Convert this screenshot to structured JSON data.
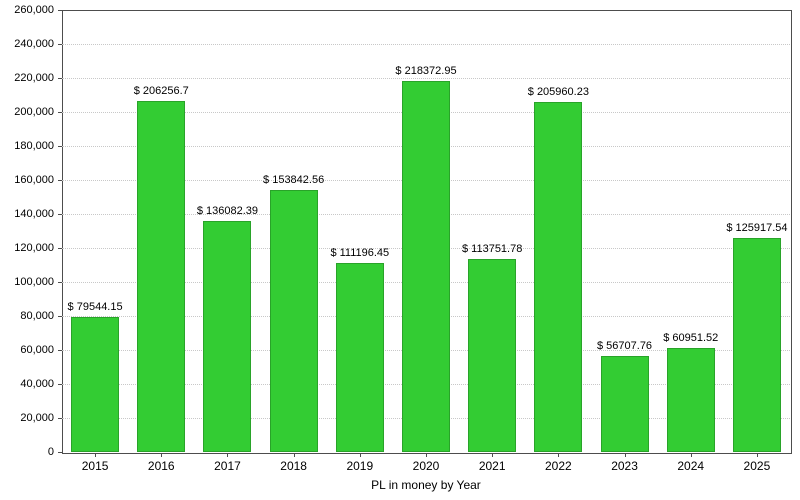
{
  "chart_data": {
    "type": "bar",
    "title": "",
    "xlabel": "PL in money by Year",
    "ylabel": "",
    "categories": [
      "2015",
      "2016",
      "2017",
      "2018",
      "2019",
      "2020",
      "2021",
      "2022",
      "2023",
      "2024",
      "2025"
    ],
    "values": [
      79544.15,
      206256.7,
      136082.39,
      153842.56,
      111196.45,
      218372.95,
      113751.78,
      205960.23,
      56707.76,
      60951.52,
      125917.54
    ],
    "bar_labels": [
      "$ 79544.15",
      "$ 206256.7",
      "$ 136082.39",
      "$ 153842.56",
      "$ 111196.45",
      "$ 218372.95",
      "$ 113751.78",
      "$ 205960.23",
      "$ 56707.76",
      "$ 60951.52",
      "$ 125917.54"
    ],
    "ylim": [
      0,
      260000
    ],
    "ytick_step": 20000,
    "ytick_labels": [
      "0",
      "20,000",
      "40,000",
      "60,000",
      "80,000",
      "100,000",
      "120,000",
      "140,000",
      "160,000",
      "180,000",
      "200,000",
      "220,000",
      "240,000",
      "260,000"
    ],
    "grid": "horizontal-dotted",
    "legend": "none",
    "colors": {
      "bar_fill": "#33cc33",
      "bar_border": "#29a329",
      "grid_line": "#c8c8c8",
      "axis_line": "#4d4d4d",
      "label_text": "#000000",
      "background": "#ffffff"
    }
  }
}
